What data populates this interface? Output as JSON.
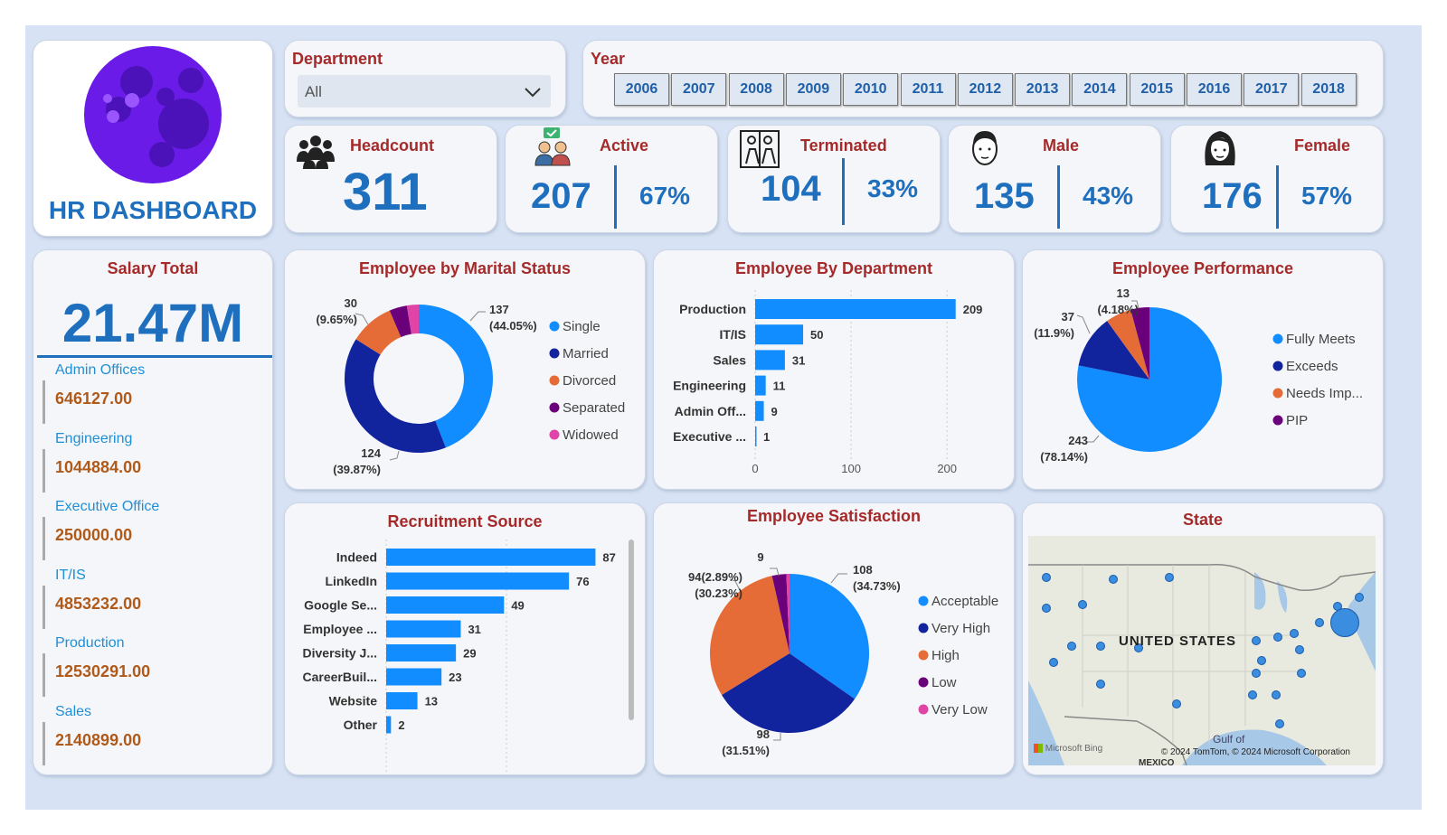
{
  "header": {
    "title": "HR DASHBOARD"
  },
  "filters": {
    "department": {
      "label": "Department",
      "value": "All"
    },
    "year": {
      "label": "Year",
      "options": [
        "2006",
        "2007",
        "2008",
        "2009",
        "2010",
        "2011",
        "2012",
        "2013",
        "2014",
        "2015",
        "2016",
        "2017",
        "2018"
      ]
    }
  },
  "kpis": {
    "headcount": {
      "label": "Headcount",
      "value": "311"
    },
    "active": {
      "label": "Active",
      "value": "207",
      "pct": "67%"
    },
    "terminated": {
      "label": "Terminated",
      "value": "104",
      "pct": "33%"
    },
    "male": {
      "label": "Male",
      "value": "135",
      "pct": "43%"
    },
    "female": {
      "label": "Female",
      "value": "176",
      "pct": "57%"
    }
  },
  "salary": {
    "title": "Salary Total",
    "total": "21.47M",
    "items": [
      {
        "dept": "Admin Offices",
        "value": "646127.00"
      },
      {
        "dept": "Engineering",
        "value": "1044884.00"
      },
      {
        "dept": "Executive Office",
        "value": "250000.00"
      },
      {
        "dept": "IT/IS",
        "value": "4853232.00"
      },
      {
        "dept": "Production",
        "value": "12530291.00"
      },
      {
        "dept": "Sales",
        "value": "2140899.00"
      }
    ]
  },
  "map": {
    "title": "State",
    "country_label": "UNITED STATES",
    "gulf_label": "Gulf of",
    "mexico_label": "MEXICO",
    "bing_label": "Microsoft Bing",
    "copyright": "© 2024 TomTom, © 2024 Microsoft Corporation"
  },
  "chart_data": [
    {
      "type": "donut",
      "title": "Employee by Marital Status",
      "categories": [
        "Single",
        "Married",
        "Divorced",
        "Separated",
        "Widowed"
      ],
      "values": [
        137,
        124,
        30,
        12,
        8
      ],
      "colors": [
        "#118dff",
        "#12239e",
        "#e66c37",
        "#6b007b",
        "#e044a7"
      ],
      "data_labels": [
        {
          "value": "137",
          "pct": "(44.05%)"
        },
        {
          "value": "124",
          "pct": "(39.87%)"
        },
        {
          "value": "30",
          "pct": "(9.65%)"
        }
      ]
    },
    {
      "type": "bar",
      "title": "Employee By Department",
      "categories": [
        "Production",
        "IT/IS",
        "Sales",
        "Engineering",
        "Admin Off...",
        "Executive ..."
      ],
      "values": [
        209,
        50,
        31,
        11,
        9,
        1
      ],
      "xticks": [
        0,
        100,
        200
      ],
      "xlim": [
        0,
        230
      ]
    },
    {
      "type": "pie",
      "title": "Employee Performance",
      "categories": [
        "Fully Meets",
        "Exceeds",
        "Needs Imp...",
        "PIP"
      ],
      "values": [
        243,
        37,
        18,
        13
      ],
      "colors": [
        "#118dff",
        "#12239e",
        "#e66c37",
        "#6b007b"
      ],
      "data_labels": [
        {
          "value": "243",
          "pct": "(78.14%)"
        },
        {
          "value": "37",
          "pct": "(11.9%)"
        },
        {
          "value": "13",
          "pct": "(4.18%)"
        }
      ]
    },
    {
      "type": "bar",
      "title": "Recruitment Source",
      "categories": [
        "Indeed",
        "LinkedIn",
        "Google Se...",
        "Employee ...",
        "Diversity J...",
        "CareerBuil...",
        "Website",
        "Other"
      ],
      "values": [
        87,
        76,
        49,
        31,
        29,
        23,
        13,
        2
      ],
      "xticks": [
        0,
        50
      ],
      "xlim": [
        0,
        100
      ]
    },
    {
      "type": "pie",
      "title": "Employee Satisfaction",
      "categories": [
        "Acceptable",
        "Very High",
        "High",
        "Low",
        "Very Low"
      ],
      "values": [
        108,
        98,
        94,
        9,
        2
      ],
      "colors": [
        "#118dff",
        "#12239e",
        "#e66c37",
        "#6b007b",
        "#e044a7"
      ],
      "data_labels": [
        {
          "value": "108",
          "pct": "(34.73%)"
        },
        {
          "value": "98",
          "pct": "(31.51%)"
        },
        {
          "value": "94(2.89%)",
          "pct": "(30.23%)"
        },
        {
          "value": "9",
          "pct": ""
        }
      ]
    }
  ]
}
